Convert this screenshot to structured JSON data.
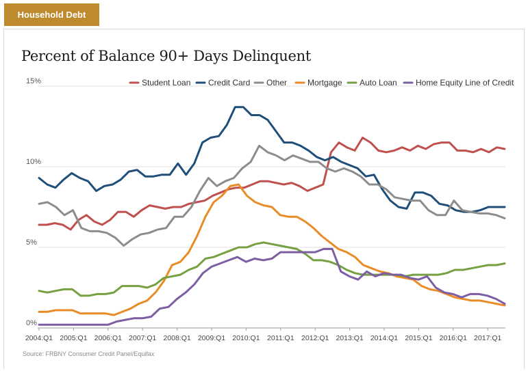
{
  "header": {
    "tab_label": "Household Debt"
  },
  "source": "Source: FRBNY Consumer Credit Panel/Equifax",
  "colors": {
    "tab_background": "#bd8a2e"
  },
  "chart_data": {
    "type": "line",
    "title": "Percent of Balance 90+ Days Delinquent",
    "xlabel": "",
    "ylabel": "",
    "ylim": [
      0,
      15
    ],
    "y_ticks": [
      0,
      5,
      10,
      15
    ],
    "y_tick_labels": [
      "0%",
      "5%",
      "10%",
      "15%"
    ],
    "x_tick_labels": [
      "2004:Q1",
      "2005:Q1",
      "2006:Q1",
      "2007:Q1",
      "2008:Q1",
      "2009:Q1",
      "2010:Q1",
      "2011:Q1",
      "2012:Q1",
      "2013:Q1",
      "2014:Q1",
      "2015:Q1",
      "2016:Q1",
      "2017:Q1"
    ],
    "grid": "horizontal",
    "legend_position": "top",
    "x_start": "2004:Q1",
    "series": [
      {
        "name": "Student Loan",
        "color": "#c0504d",
        "values": [
          6.4,
          6.4,
          6.5,
          6.4,
          6.1,
          6.7,
          7.0,
          6.6,
          6.4,
          6.7,
          7.2,
          7.2,
          6.9,
          7.3,
          7.6,
          7.5,
          7.4,
          7.5,
          7.5,
          7.7,
          7.8,
          7.9,
          8.2,
          8.4,
          8.6,
          8.7,
          8.7,
          8.9,
          9.1,
          9.1,
          9.0,
          8.9,
          9.0,
          8.8,
          8.5,
          8.7,
          8.9,
          10.9,
          11.5,
          11.2,
          11.0,
          11.8,
          11.5,
          11.0,
          10.9,
          11.0,
          11.2,
          11.0,
          11.3,
          11.1,
          11.4,
          11.5,
          11.5,
          11.0,
          11.0,
          10.9,
          11.1,
          10.9,
          11.2,
          11.1
        ]
      },
      {
        "name": "Credit Card",
        "color": "#1f4e79",
        "values": [
          9.3,
          8.9,
          8.7,
          9.2,
          9.6,
          9.3,
          9.1,
          8.5,
          8.8,
          8.9,
          9.2,
          9.7,
          9.8,
          9.4,
          9.4,
          9.5,
          9.5,
          10.2,
          9.5,
          10.2,
          11.5,
          11.8,
          11.9,
          12.6,
          13.7,
          13.7,
          13.2,
          13.2,
          12.9,
          12.2,
          11.5,
          11.5,
          11.3,
          11.0,
          10.6,
          10.4,
          10.6,
          10.3,
          10.1,
          9.9,
          9.4,
          9.5,
          8.6,
          7.9,
          7.5,
          7.4,
          8.4,
          8.4,
          8.2,
          7.7,
          7.6,
          7.3,
          7.2,
          7.2,
          7.3,
          7.5,
          7.5,
          7.5
        ]
      },
      {
        "name": "Other",
        "color": "#8c8c8c",
        "values": [
          7.7,
          7.8,
          7.5,
          7.0,
          7.3,
          6.2,
          6.0,
          6.0,
          5.9,
          5.6,
          5.1,
          5.5,
          5.8,
          5.9,
          6.1,
          6.2,
          6.9,
          6.9,
          7.5,
          8.5,
          9.3,
          8.8,
          9.1,
          9.3,
          9.9,
          10.3,
          11.3,
          10.9,
          10.7,
          10.4,
          10.7,
          10.5,
          10.3,
          10.3,
          9.9,
          9.7,
          9.9,
          9.7,
          9.4,
          8.9,
          8.9,
          8.6,
          8.1,
          8.0,
          7.9,
          7.9,
          7.3,
          7.0,
          7.0,
          7.9,
          7.3,
          7.2,
          7.1,
          7.1,
          7.0,
          6.8
        ]
      },
      {
        "name": "Mortgage",
        "color": "#e98c27",
        "values": [
          1.0,
          1.0,
          1.1,
          1.1,
          1.1,
          0.9,
          0.9,
          0.9,
          0.9,
          0.8,
          1.0,
          1.2,
          1.5,
          1.7,
          2.2,
          2.9,
          3.9,
          4.1,
          4.7,
          5.7,
          6.9,
          7.8,
          8.2,
          8.8,
          8.9,
          8.2,
          7.8,
          7.6,
          7.5,
          7.0,
          6.9,
          6.9,
          6.6,
          6.2,
          5.7,
          5.3,
          4.9,
          4.7,
          4.4,
          3.9,
          3.7,
          3.5,
          3.4,
          3.2,
          3.1,
          3.0,
          2.6,
          2.4,
          2.3,
          2.1,
          1.9,
          1.8,
          1.7,
          1.7,
          1.6,
          1.5,
          1.4
        ]
      },
      {
        "name": "Auto Loan",
        "color": "#77a041",
        "values": [
          2.3,
          2.2,
          2.3,
          2.4,
          2.4,
          2.0,
          2.0,
          2.1,
          2.1,
          2.2,
          2.6,
          2.6,
          2.6,
          2.5,
          2.7,
          3.1,
          3.2,
          3.3,
          3.6,
          3.8,
          4.3,
          4.4,
          4.6,
          4.8,
          5.0,
          5.0,
          5.2,
          5.3,
          5.2,
          5.1,
          5.0,
          4.9,
          4.6,
          4.2,
          4.2,
          4.1,
          3.9,
          3.6,
          3.4,
          3.3,
          3.3,
          3.3,
          3.3,
          3.3,
          3.2,
          3.3,
          3.3,
          3.3,
          3.3,
          3.4,
          3.6,
          3.6,
          3.7,
          3.8,
          3.9,
          3.9,
          4.0
        ]
      },
      {
        "name": "Home Equity Line of Credit",
        "color": "#7b5ea3",
        "values": [
          0.2,
          0.2,
          0.2,
          0.2,
          0.2,
          0.2,
          0.2,
          0.2,
          0.2,
          0.4,
          0.5,
          0.6,
          0.6,
          0.7,
          1.2,
          1.3,
          1.8,
          2.2,
          2.7,
          3.4,
          3.8,
          4.0,
          4.2,
          4.4,
          4.1,
          4.3,
          4.2,
          4.3,
          4.7,
          4.7,
          4.7,
          4.7,
          4.7,
          4.9,
          4.9,
          3.5,
          3.2,
          3.0,
          3.5,
          3.2,
          3.4,
          3.3,
          3.3,
          3.1,
          3.0,
          3.2,
          2.5,
          2.2,
          2.1,
          1.9,
          2.1,
          2.1,
          2.0,
          1.8,
          1.5
        ]
      }
    ]
  }
}
